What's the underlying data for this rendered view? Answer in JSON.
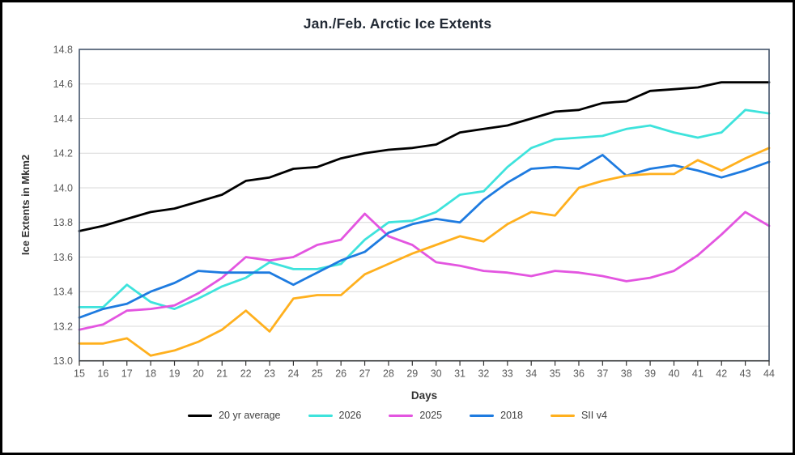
{
  "chart_data": {
    "type": "line",
    "title": "Jan./Feb. Arctic Ice Extents",
    "xlabel": "Days",
    "ylabel": "Ice Extents in Mkm2",
    "xlim": [
      15,
      44
    ],
    "ylim": [
      13.0,
      14.8
    ],
    "grid": "horizontal-only",
    "legend_position": "bottom",
    "xticks": [
      15,
      16,
      17,
      18,
      19,
      20,
      21,
      22,
      23,
      24,
      25,
      26,
      27,
      28,
      29,
      30,
      31,
      32,
      33,
      34,
      35,
      36,
      37,
      38,
      39,
      40,
      41,
      42,
      43,
      44
    ],
    "yticks": [
      "13.0",
      "13.2",
      "13.4",
      "13.6",
      "13.8",
      "14.0",
      "14.2",
      "14.4",
      "14.6",
      "14.8"
    ],
    "x": [
      15,
      16,
      17,
      18,
      19,
      20,
      21,
      22,
      23,
      24,
      25,
      26,
      27,
      28,
      29,
      30,
      31,
      32,
      33,
      34,
      35,
      36,
      37,
      38,
      39,
      40,
      41,
      42,
      43,
      44
    ],
    "series": [
      {
        "name": "20 yr average",
        "color": "#000000",
        "values": [
          13.75,
          13.78,
          13.82,
          13.86,
          13.88,
          13.92,
          13.96,
          14.04,
          14.06,
          14.11,
          14.12,
          14.17,
          14.2,
          14.22,
          14.23,
          14.25,
          14.32,
          14.34,
          14.36,
          14.4,
          14.44,
          14.45,
          14.49,
          14.5,
          14.56,
          14.57,
          14.58,
          14.61,
          14.61,
          14.61
        ]
      },
      {
        "name": "2026",
        "color": "#3ee3dc",
        "values": [
          13.31,
          13.31,
          13.44,
          13.34,
          13.3,
          13.36,
          13.43,
          13.48,
          13.57,
          13.53,
          13.53,
          13.56,
          13.7,
          13.8,
          13.81,
          13.86,
          13.96,
          13.98,
          14.12,
          14.23,
          14.28,
          14.29,
          14.3,
          14.34,
          14.36,
          14.32,
          14.29,
          14.32,
          14.45,
          14.43
        ]
      },
      {
        "name": "2025",
        "color": "#e355e0",
        "values": [
          13.18,
          13.21,
          13.29,
          13.3,
          13.32,
          13.39,
          13.48,
          13.6,
          13.58,
          13.6,
          13.67,
          13.7,
          13.85,
          13.72,
          13.67,
          13.57,
          13.55,
          13.52,
          13.51,
          13.49,
          13.52,
          13.51,
          13.49,
          13.46,
          13.48,
          13.52,
          13.61,
          13.73,
          13.86,
          13.78
        ]
      },
      {
        "name": "2018",
        "color": "#1e7be0",
        "values": [
          13.25,
          13.3,
          13.33,
          13.4,
          13.45,
          13.52,
          13.51,
          13.51,
          13.51,
          13.44,
          13.51,
          13.58,
          13.63,
          13.74,
          13.79,
          13.82,
          13.8,
          13.93,
          14.03,
          14.11,
          14.12,
          14.11,
          14.19,
          14.07,
          14.11,
          14.13,
          14.1,
          14.06,
          14.1,
          14.15
        ]
      },
      {
        "name": "SII v4",
        "color": "#ffb01e",
        "values": [
          13.1,
          13.1,
          13.13,
          13.03,
          13.06,
          13.11,
          13.18,
          13.29,
          13.17,
          13.36,
          13.38,
          13.38,
          13.5,
          13.56,
          13.62,
          13.67,
          13.72,
          13.69,
          13.79,
          13.86,
          13.84,
          14.0,
          14.04,
          14.07,
          14.08,
          14.08,
          14.16,
          14.1,
          14.17,
          14.23
        ]
      }
    ],
    "colors": {
      "gridline": "#d9d9d9",
      "plot_border": "#44546a",
      "axis_text": "#595959",
      "title_text": "#222a35"
    }
  }
}
